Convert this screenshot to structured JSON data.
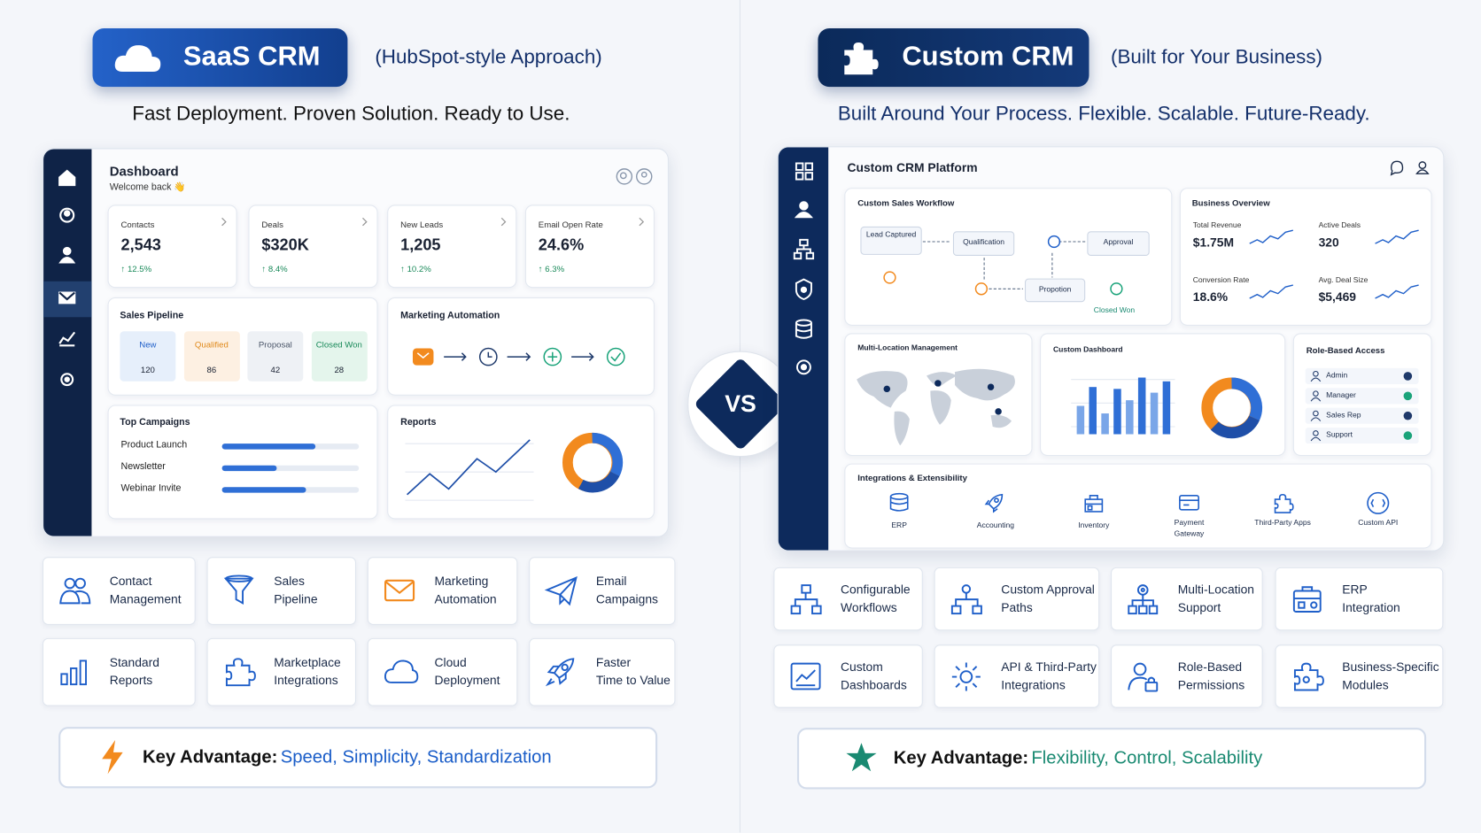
{
  "saas": {
    "badge": "SaaS CRM",
    "subtitle": "(HubSpot-style Approach)",
    "tagline": "Fast Deployment. Proven Solution. Ready to Use.",
    "dashboard": {
      "title": "Dashboard",
      "welcome": "Welcome back 👋",
      "kpis": [
        {
          "label": "Contacts",
          "value": "2,543",
          "change": "↑ 12.5%"
        },
        {
          "label": "Deals",
          "value": "$320K",
          "change": "↑ 8.4%"
        },
        {
          "label": "New Leads",
          "value": "1,205",
          "change": "↑ 10.2%"
        },
        {
          "label": "Email Open Rate",
          "value": "24.6%",
          "change": "↑ 6.3%"
        }
      ],
      "pipeline": {
        "title": "Sales Pipeline",
        "stages": [
          {
            "name": "New",
            "count": 120
          },
          {
            "name": "Qualified",
            "count": 86
          },
          {
            "name": "Proposal",
            "count": 42
          },
          {
            "name": "Closed Won",
            "count": 28
          }
        ]
      },
      "automation_title": "Marketing Automation",
      "campaigns": {
        "title": "Top Campaigns",
        "items": [
          "Product Launch",
          "Newsletter",
          "Webinar Invite"
        ]
      },
      "reports_title": "Reports"
    },
    "features": [
      [
        "Contact",
        "Management"
      ],
      [
        "Sales",
        "Pipeline"
      ],
      [
        "Marketing",
        "Automation"
      ],
      [
        "Email",
        "Campaigns"
      ],
      [
        "Standard",
        "Reports"
      ],
      [
        "Marketplace",
        "Integrations"
      ],
      [
        "Cloud",
        "Deployment"
      ],
      [
        "Faster",
        "Time to Value"
      ]
    ],
    "advantage": {
      "label": "Key Advantage:",
      "text": "Speed, Simplicity, Standardization"
    }
  },
  "vs": "VS",
  "custom": {
    "badge": "Custom CRM",
    "subtitle": "(Built for Your Business)",
    "tagline": "Built Around Your Process. Flexible. Scalable. Future-Ready.",
    "dashboard": {
      "title": "Custom CRM Platform",
      "workflow": {
        "title": "Custom Sales Workflow",
        "nodes": [
          "Lead Captured",
          "Qualification",
          "Approval",
          "Propotion",
          "Closed Won"
        ]
      },
      "overview": {
        "title": "Business Overview",
        "metrics": [
          {
            "label": "Total Revenue",
            "value": "$1.75M"
          },
          {
            "label": "Active Deals",
            "value": 320
          },
          {
            "label": "Conversion Rate",
            "value": "18.6%"
          },
          {
            "label": "Avg. Deal Size",
            "value": "$5,469"
          }
        ]
      },
      "multi_location_title": "Multi-Location Management",
      "custom_dashboard_title": "Custom Dashboard",
      "roles": {
        "title": "Role-Based Access",
        "items": [
          "Admin",
          "Manager",
          "Sales Rep",
          "Support"
        ]
      },
      "integrations": {
        "title": "Integrations & Extensibility",
        "items": [
          "ERP",
          "Accounting",
          "Inventory",
          "Payment Gateway",
          "Third-Party Apps",
          "Custom API"
        ]
      }
    },
    "features": [
      [
        "Configurable",
        "Workflows"
      ],
      [
        "Custom Approval",
        "Paths"
      ],
      [
        "Multi-Location",
        "Support"
      ],
      [
        "ERP",
        "Integration"
      ],
      [
        "Custom",
        "Dashboards"
      ],
      [
        "API & Third-Party",
        "Integrations"
      ],
      [
        "Role-Based",
        "Permissions"
      ],
      [
        "Business-Specific",
        "Modules"
      ]
    ],
    "advantage": {
      "label": "Key Advantage:",
      "text": "Flexibility, Control, Scalability"
    }
  }
}
